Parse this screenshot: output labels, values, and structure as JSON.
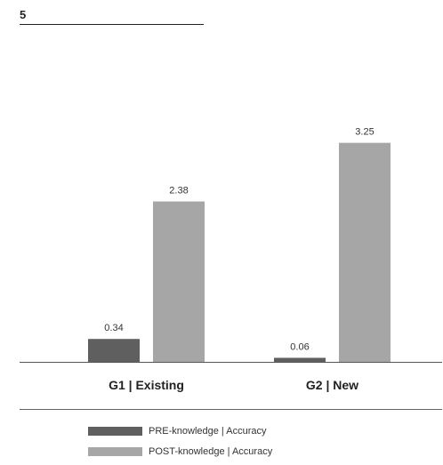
{
  "page_number": "5",
  "chart_data": {
    "type": "bar",
    "categories": [
      "G1 | Existing",
      "G2 | New"
    ],
    "series": [
      {
        "name": "PRE-knowledge | Accuracy",
        "values": [
          0.34,
          0.06
        ],
        "color": "#5f5f5f"
      },
      {
        "name": "POST-knowledge | Accuracy",
        "values": [
          2.38,
          3.25
        ],
        "color": "#a6a6a6"
      }
    ],
    "value_labels": [
      [
        "0.34",
        "0.06"
      ],
      [
        "2.38",
        "3.25"
      ]
    ],
    "ylim": [
      0,
      3.5
    ],
    "grid": false,
    "legend_position": "bottom-left"
  }
}
